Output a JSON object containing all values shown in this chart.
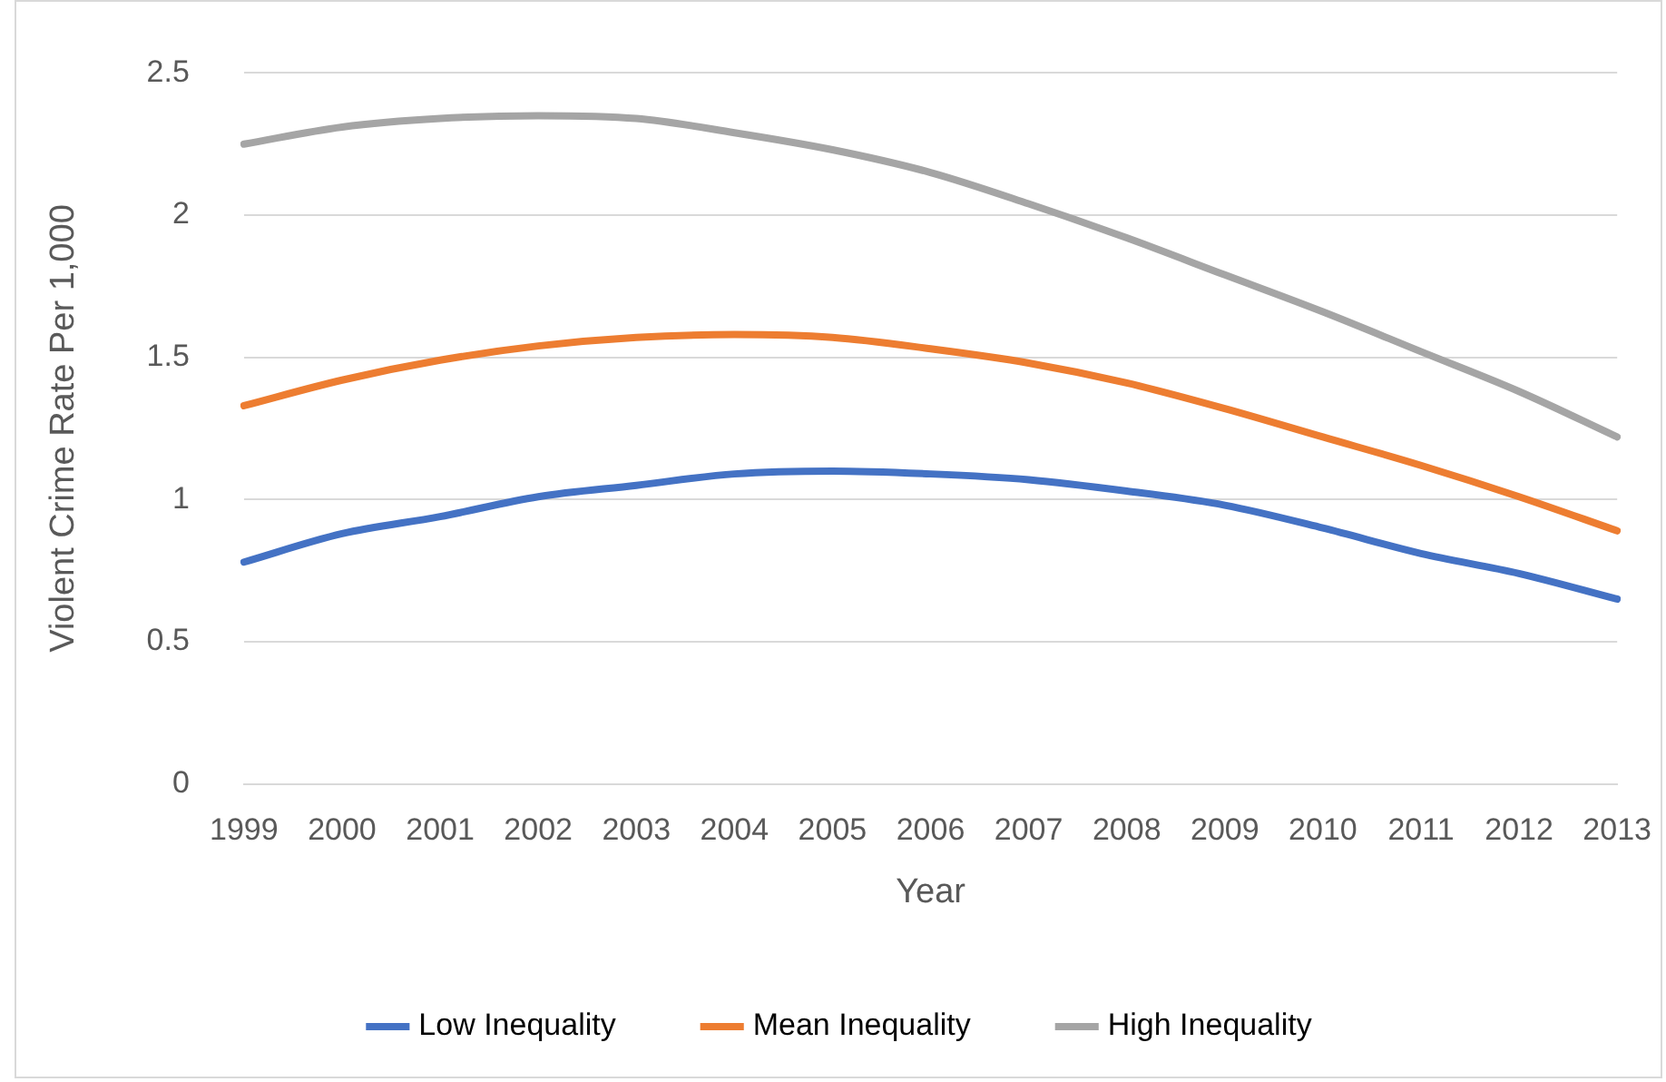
{
  "chart_data": {
    "type": "line",
    "xlabel": "Year",
    "ylabel": "Violent Crime Rate Per 1,000",
    "categories": [
      "1999",
      "2000",
      "2001",
      "2002",
      "2003",
      "2004",
      "2005",
      "2006",
      "2007",
      "2008",
      "2009",
      "2010",
      "2011",
      "2012",
      "2013"
    ],
    "series": [
      {
        "name": "Low Inequality",
        "color": "#4472c4",
        "values": [
          0.78,
          0.88,
          0.94,
          1.01,
          1.05,
          1.09,
          1.1,
          1.09,
          1.07,
          1.03,
          0.98,
          0.9,
          0.81,
          0.74,
          0.65
        ]
      },
      {
        "name": "Mean Inequality",
        "color": "#ed7d31",
        "values": [
          1.33,
          1.42,
          1.49,
          1.54,
          1.57,
          1.58,
          1.57,
          1.53,
          1.48,
          1.41,
          1.32,
          1.22,
          1.12,
          1.01,
          0.89
        ]
      },
      {
        "name": "High Inequality",
        "color": "#a5a5a5",
        "values": [
          2.25,
          2.31,
          2.34,
          2.35,
          2.34,
          2.29,
          2.23,
          2.15,
          2.04,
          1.92,
          1.79,
          1.66,
          1.52,
          1.38,
          1.22
        ]
      }
    ],
    "ylim": [
      0,
      2.5
    ],
    "yticks": [
      0,
      0.5,
      1,
      1.5,
      2,
      2.5
    ],
    "grid": "y",
    "legend": "bottom",
    "marker": "none",
    "line_style": "solid"
  }
}
